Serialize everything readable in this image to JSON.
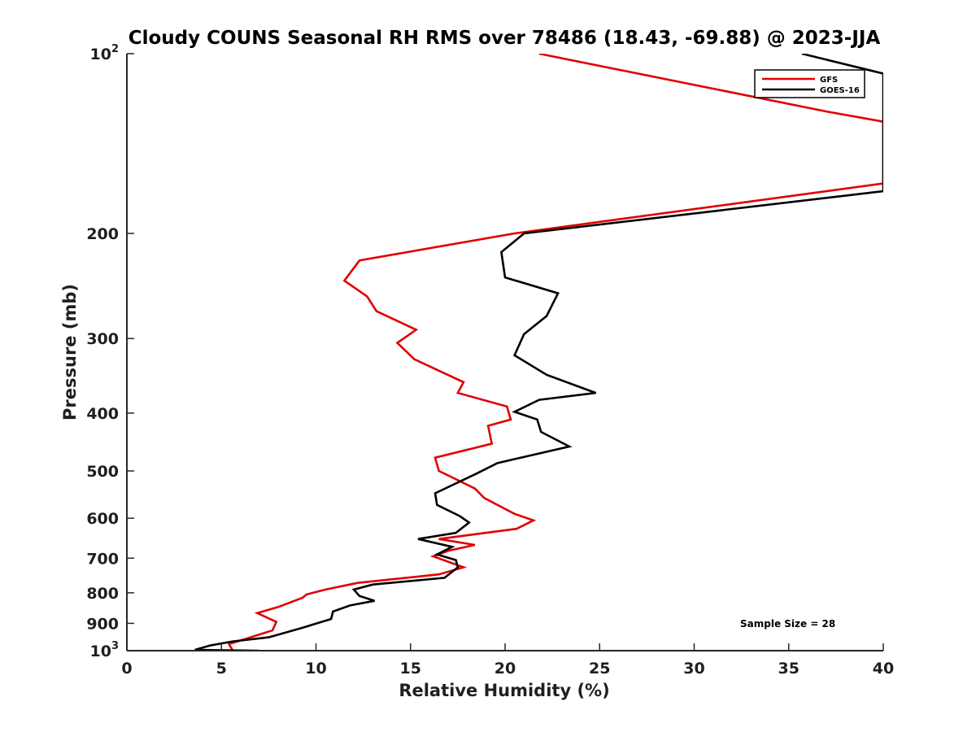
{
  "chart_data": {
    "type": "line",
    "title": "Cloudy COUNS Seasonal RH RMS over 78486 (18.43, -69.88) @ 2023-JJA",
    "xlabel": "Relative Humidity (%)",
    "ylabel": "Pressure (mb)",
    "xlim": [
      0,
      40
    ],
    "ylim": [
      100,
      1000
    ],
    "yscale": "log",
    "yreversed": true,
    "x_ticks": [
      0,
      5,
      10,
      15,
      20,
      25,
      30,
      35,
      40
    ],
    "x_tick_labels": [
      "0",
      "5",
      "10",
      "15",
      "20",
      "25",
      "30",
      "35",
      "40"
    ],
    "y_ticks": [
      {
        "value": 100,
        "base": "10",
        "exp": "2"
      },
      {
        "value": 200,
        "label": "200"
      },
      {
        "value": 300,
        "label": "300"
      },
      {
        "value": 400,
        "label": "400"
      },
      {
        "value": 500,
        "label": "500"
      },
      {
        "value": 600,
        "label": "600"
      },
      {
        "value": 700,
        "label": "700"
      },
      {
        "value": 800,
        "label": "800"
      },
      {
        "value": 900,
        "label": "900"
      },
      {
        "value": 1000,
        "base": "10",
        "exp": "3"
      }
    ],
    "legend_position": "top-right",
    "annotation": "Sample Size = 28",
    "series": [
      {
        "name": "GFS",
        "color": "#e00000",
        "points": [
          [
            21.8,
            100
          ],
          [
            37.0,
            125
          ],
          [
            40.0,
            130
          ],
          [
            40.0,
            165
          ],
          [
            20.5,
            200
          ],
          [
            12.3,
            222
          ],
          [
            11.5,
            240
          ],
          [
            12.7,
            255
          ],
          [
            13.2,
            270
          ],
          [
            15.3,
            290
          ],
          [
            14.3,
            305
          ],
          [
            15.2,
            325
          ],
          [
            17.8,
            355
          ],
          [
            17.5,
            370
          ],
          [
            20.1,
            390
          ],
          [
            20.3,
            410
          ],
          [
            19.1,
            420
          ],
          [
            19.3,
            450
          ],
          [
            16.3,
            475
          ],
          [
            16.5,
            500
          ],
          [
            18.4,
            535
          ],
          [
            18.9,
            555
          ],
          [
            20.5,
            590
          ],
          [
            21.5,
            605
          ],
          [
            20.6,
            625
          ],
          [
            16.5,
            650
          ],
          [
            18.4,
            665
          ],
          [
            17.0,
            680
          ],
          [
            16.2,
            695
          ],
          [
            17.8,
            725
          ],
          [
            16.5,
            745
          ],
          [
            12.2,
            770
          ],
          [
            10.5,
            790
          ],
          [
            9.5,
            805
          ],
          [
            9.3,
            815
          ],
          [
            8.0,
            845
          ],
          [
            6.9,
            865
          ],
          [
            7.9,
            895
          ],
          [
            7.7,
            925
          ],
          [
            5.4,
            975
          ],
          [
            5.6,
            1000
          ]
        ]
      },
      {
        "name": "GOES-16",
        "color": "#000000",
        "points": [
          [
            35.7,
            100
          ],
          [
            40.0,
            108
          ],
          [
            40.0,
            170
          ],
          [
            21.0,
            200
          ],
          [
            19.8,
            215
          ],
          [
            20.0,
            237
          ],
          [
            22.8,
            252
          ],
          [
            22.2,
            275
          ],
          [
            21.0,
            295
          ],
          [
            20.5,
            320
          ],
          [
            22.2,
            345
          ],
          [
            24.8,
            370
          ],
          [
            21.8,
            380
          ],
          [
            20.5,
            398
          ],
          [
            21.7,
            410
          ],
          [
            21.9,
            430
          ],
          [
            23.4,
            455
          ],
          [
            19.6,
            485
          ],
          [
            18.5,
            505
          ],
          [
            16.3,
            545
          ],
          [
            16.4,
            570
          ],
          [
            17.6,
            595
          ],
          [
            18.1,
            610
          ],
          [
            17.4,
            635
          ],
          [
            15.4,
            650
          ],
          [
            17.2,
            670
          ],
          [
            16.4,
            690
          ],
          [
            17.4,
            705
          ],
          [
            17.5,
            725
          ],
          [
            16.8,
            755
          ],
          [
            13.0,
            775
          ],
          [
            12.0,
            790
          ],
          [
            12.3,
            810
          ],
          [
            13.1,
            825
          ],
          [
            11.8,
            840
          ],
          [
            10.9,
            860
          ],
          [
            10.8,
            885
          ],
          [
            9.3,
            915
          ],
          [
            7.5,
            950
          ],
          [
            5.6,
            965
          ],
          [
            4.4,
            980
          ],
          [
            3.6,
            997
          ],
          [
            7.0,
            1000
          ]
        ]
      }
    ]
  }
}
